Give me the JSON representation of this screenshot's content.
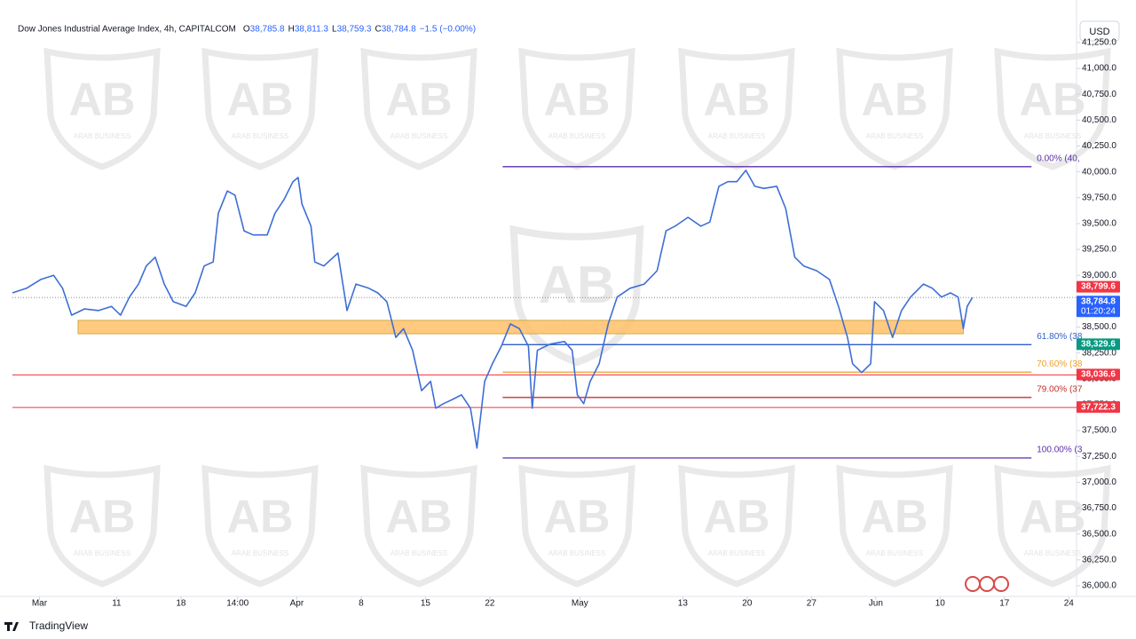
{
  "chart_data": {
    "type": "line",
    "title": "Dow Jones Industrial Average Index, 4h, CAPITALCOM",
    "ohlc": [
      {
        "key": "O",
        "text": "38,785.8"
      },
      {
        "key": "H",
        "text": "38,811.3"
      },
      {
        "key": "L",
        "text": "38,759.3"
      },
      {
        "key": "C",
        "text": "38,784.8"
      }
    ],
    "change": "−1.5 (−0.00%)",
    "color": "#3d6ed6",
    "x": [
      -2.1,
      -1.0,
      0.1,
      1.1,
      1.8,
      2.5,
      3.5,
      4.6,
      5.6,
      6.3,
      7.0,
      7.7,
      8.3,
      9.0,
      9.7,
      10.4,
      11.4,
      12.1,
      12.8,
      13.5,
      13.9,
      14.6,
      15.2,
      15.9,
      16.6,
      17.7,
      18.3,
      19.0,
      19.7,
      20.1,
      20.4,
      21.1,
      21.4,
      22.1,
      23.2,
      23.9,
      24.6,
      25.6,
      26.3,
      27.0,
      27.7,
      28.3,
      29.0,
      29.7,
      30.4,
      30.8,
      31.4,
      32.1,
      32.8,
      33.5,
      34.0,
      34.6,
      35.2,
      35.9,
      36.6,
      37.3,
      38.0,
      38.3,
      38.7,
      39.7,
      40.8,
      41.4,
      41.8,
      42.3,
      42.8,
      43.5,
      44.2,
      44.9,
      45.9,
      47.0,
      48.0,
      48.7,
      49.4,
      50.4,
      51.4,
      52.1,
      52.8,
      53.5,
      54.2,
      54.9,
      55.6,
      56.3,
      57.3,
      58.0,
      58.7,
      59.4,
      60.4,
      61.4,
      62.1,
      62.8,
      63.2,
      63.9,
      64.6,
      64.9,
      65.6,
      66.3,
      67.0,
      67.7,
      68.7,
      69.4,
      70.1,
      70.8,
      71.4,
      71.8,
      72.1,
      72.5
    ],
    "values": [
      38830,
      38875,
      38960,
      39000,
      38875,
      38615,
      38675,
      38660,
      38700,
      38615,
      38790,
      38915,
      39090,
      39175,
      38915,
      38745,
      38700,
      38830,
      39090,
      39130,
      39600,
      39815,
      39775,
      39430,
      39390,
      39390,
      39600,
      39730,
      39905,
      39945,
      39690,
      39475,
      39130,
      39090,
      39215,
      38660,
      38915,
      38875,
      38830,
      38745,
      38400,
      38485,
      38275,
      37885,
      37975,
      37715,
      37760,
      37800,
      37845,
      37715,
      37330,
      37975,
      38145,
      38315,
      38530,
      38485,
      38315,
      37715,
      38275,
      38335,
      38360,
      38275,
      37845,
      37760,
      37975,
      38145,
      38530,
      38790,
      38875,
      38915,
      39045,
      39430,
      39475,
      39560,
      39475,
      39515,
      39860,
      39905,
      39905,
      40015,
      39860,
      39840,
      39860,
      39645,
      39175,
      39090,
      39045,
      38960,
      38700,
      38400,
      38145,
      38060,
      38145,
      38745,
      38660,
      38400,
      38660,
      38790,
      38915,
      38875,
      38790,
      38830,
      38790,
      38485,
      38700,
      38785
    ],
    "xlim": [
      -2.1,
      80.6
    ],
    "xticks": [
      {
        "value": 0,
        "label": "Mar"
      },
      {
        "value": 6,
        "label": "11"
      },
      {
        "value": 11,
        "label": "18"
      },
      {
        "value": 15.4,
        "label": "14:00"
      },
      {
        "value": 20,
        "label": "Apr"
      },
      {
        "value": 25,
        "label": "8"
      },
      {
        "value": 30,
        "label": "15"
      },
      {
        "value": 35,
        "label": "22"
      },
      {
        "value": 42,
        "label": "May"
      },
      {
        "value": 50,
        "label": "13"
      },
      {
        "value": 55,
        "label": "20"
      },
      {
        "value": 60,
        "label": "27"
      },
      {
        "value": 65,
        "label": "Jun"
      },
      {
        "value": 70,
        "label": "10"
      },
      {
        "value": 75,
        "label": "17"
      },
      {
        "value": 80,
        "label": "24"
      }
    ],
    "ylim": [
      35897,
      41472
    ],
    "yticks": [
      {
        "value": 36000,
        "label": "36,000.0"
      },
      {
        "value": 36250,
        "label": "36,250.0"
      },
      {
        "value": 36500,
        "label": "36,500.0"
      },
      {
        "value": 36750,
        "label": "36,750.0"
      },
      {
        "value": 37000,
        "label": "37,000.0"
      },
      {
        "value": 37250,
        "label": "37,250.0"
      },
      {
        "value": 37500,
        "label": "37,500.0"
      },
      {
        "value": 37750,
        "label": "37,750.0"
      },
      {
        "value": 38000,
        "label": "38,000.0"
      },
      {
        "value": 38250,
        "label": "38,250.0"
      },
      {
        "value": 38500,
        "label": "38,500.0"
      },
      {
        "value": 38750,
        "label": "38,750.0"
      },
      {
        "value": 39000,
        "label": "39,000.0"
      },
      {
        "value": 39250,
        "label": "39,250.0"
      },
      {
        "value": 39500,
        "label": "39,500.0"
      },
      {
        "value": 39750,
        "label": "39,750.0"
      },
      {
        "value": 40000,
        "label": "40,000.0"
      },
      {
        "value": 40250,
        "label": "40,250.0"
      },
      {
        "value": 40500,
        "label": "40,500.0"
      },
      {
        "value": 40750,
        "label": "40,750.0"
      },
      {
        "value": 41000,
        "label": "41,000.0"
      },
      {
        "value": 41250,
        "label": "41,250.0"
      }
    ],
    "zones": [
      {
        "x": [
          3.0,
          71.8
        ],
        "y": [
          38435,
          38565
        ],
        "color": "#ffc068"
      }
    ],
    "levels": [
      {
        "label": "0.00% (40,",
        "value": 40050,
        "color": "#5b2fa8",
        "x": [
          36.0,
          77.1
        ]
      },
      {
        "label": "61.80% (38",
        "value": 38330,
        "color": "#2f5fc9",
        "x": [
          36.0,
          77.1
        ]
      },
      {
        "label": "70.60% (38",
        "value": 38065,
        "color": "#f0a020",
        "x": [
          36.0,
          77.1
        ]
      },
      {
        "label": "79.00% (37",
        "value": 37820,
        "color": "#c4302b",
        "x": [
          36.0,
          77.1
        ]
      },
      {
        "label": "100.00% (3",
        "value": 37235,
        "color": "#5b2fa8",
        "x": [
          36.0,
          77.1
        ]
      }
    ],
    "badges": [
      {
        "value": 38799.6,
        "label": "38,799.6",
        "color": "#f23645",
        "line": "none"
      },
      {
        "value": 38784.8,
        "label": "38,784.8",
        "countdown": "01:20:24",
        "color": "#2962ff",
        "line": "dotted"
      },
      {
        "value": 38329.6,
        "label": "38,329.6",
        "color": "#089981",
        "line": "none"
      },
      {
        "value": 38036.6,
        "label": "38,036.6",
        "color": "#f23645",
        "line": "solid"
      },
      {
        "value": 37722.3,
        "label": "37,722.3",
        "color": "#f23645",
        "line": "solid"
      }
    ]
  },
  "currency": "USD",
  "footer": "TradingView",
  "watermark": {
    "mark": "AB",
    "name": "ARAB BUSINESS"
  }
}
